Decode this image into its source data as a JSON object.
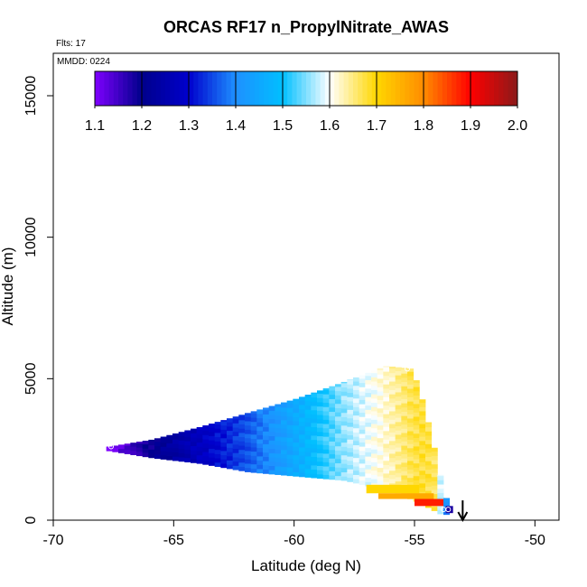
{
  "chart_data": {
    "type": "heatmap",
    "title": "ORCAS RF17 n_PropylNitrate_AWAS",
    "flights_label": "Flts: 17",
    "date_label": "MMDD: 0224",
    "xlabel": "Latitude (deg N)",
    "ylabel": "Altitude (m)",
    "xlim": [
      -70,
      -49
    ],
    "ylim": [
      0,
      16500
    ],
    "x_ticks": [
      -70,
      -65,
      -60,
      -55,
      -50
    ],
    "x_tick_labels": [
      "-70",
      "-65",
      "-60",
      "-55",
      "-50"
    ],
    "y_ticks": [
      0,
      5000,
      10000,
      15000
    ],
    "y_tick_labels": [
      "0",
      "5000",
      "10000",
      "15000"
    ],
    "colorbar": {
      "min": 1.1,
      "max": 2.0,
      "ticks": [
        1.1,
        1.2,
        1.3,
        1.4,
        1.5,
        1.6,
        1.7,
        1.8,
        1.9,
        2.0
      ],
      "tick_labels": [
        "1.1",
        "1.2",
        "1.3",
        "1.4",
        "1.5",
        "1.6",
        "1.7",
        "1.8",
        "1.9",
        "2.0"
      ],
      "colors": [
        "#7f00ff",
        "#00008b",
        "#0000cd",
        "#1e90ff",
        "#00bfff",
        "#ffffff",
        "#ffd700",
        "#ff8c00",
        "#ff0000",
        "#8b1a1a"
      ]
    },
    "profile": [
      {
        "lat": -67.8,
        "alt": 2600,
        "value": 1.1
      },
      {
        "lat": -66.0,
        "alt": 2850,
        "value": 1.2
      },
      {
        "lat": -64.0,
        "alt": 3300,
        "value": 1.28
      },
      {
        "lat": -62.0,
        "alt": 3800,
        "value": 1.36
      },
      {
        "lat": -60.0,
        "alt": 4300,
        "value": 1.46
      },
      {
        "lat": -58.0,
        "alt": 4900,
        "value": 1.56
      },
      {
        "lat": -56.3,
        "alt": 5450,
        "value": 1.62
      },
      {
        "lat": -55.2,
        "alt": 5350,
        "value": 1.67
      },
      {
        "lat": -54.7,
        "alt": 4000,
        "value": 1.68
      },
      {
        "lat": -54.2,
        "alt": 2200,
        "value": 1.66
      },
      {
        "lat": -53.9,
        "alt": 1000,
        "value": 1.5
      },
      {
        "lat": -53.6,
        "alt": 350,
        "value": 1.2
      }
    ],
    "bottom_edge": [
      {
        "lat": -67.8,
        "alt": 2450
      },
      {
        "lat": -66.0,
        "alt": 2200
      },
      {
        "lat": -64.0,
        "alt": 2000
      },
      {
        "lat": -62.0,
        "alt": 1700
      },
      {
        "lat": -60.0,
        "alt": 1550
      },
      {
        "lat": -58.0,
        "alt": 1400
      },
      {
        "lat": -56.0,
        "alt": 1000
      },
      {
        "lat": -55.0,
        "alt": 650
      },
      {
        "lat": -54.0,
        "alt": 200
      }
    ],
    "low_band": [
      {
        "lat_from": -57.0,
        "lat_to": -54.8,
        "alt_from": 950,
        "alt_to": 1250,
        "value": 1.7
      },
      {
        "lat_from": -56.5,
        "lat_to": -54.2,
        "alt_from": 750,
        "alt_to": 950,
        "value": 1.76
      },
      {
        "lat_from": -55.0,
        "lat_to": -53.8,
        "alt_from": 500,
        "alt_to": 750,
        "value": 1.88
      },
      {
        "lat_from": -53.7,
        "lat_to": -53.4,
        "alt_from": 250,
        "alt_to": 500,
        "value": 1.18
      }
    ],
    "sample_markers": [
      {
        "lat": -67.6,
        "alt": 2600
      },
      {
        "lat": -55.3,
        "alt": 5350
      },
      {
        "lat": -53.8,
        "alt": 380
      },
      {
        "lat": -53.6,
        "alt": 380
      }
    ],
    "arrow": {
      "lat": -53.0,
      "alt_from": 700,
      "alt_to": 0
    }
  }
}
